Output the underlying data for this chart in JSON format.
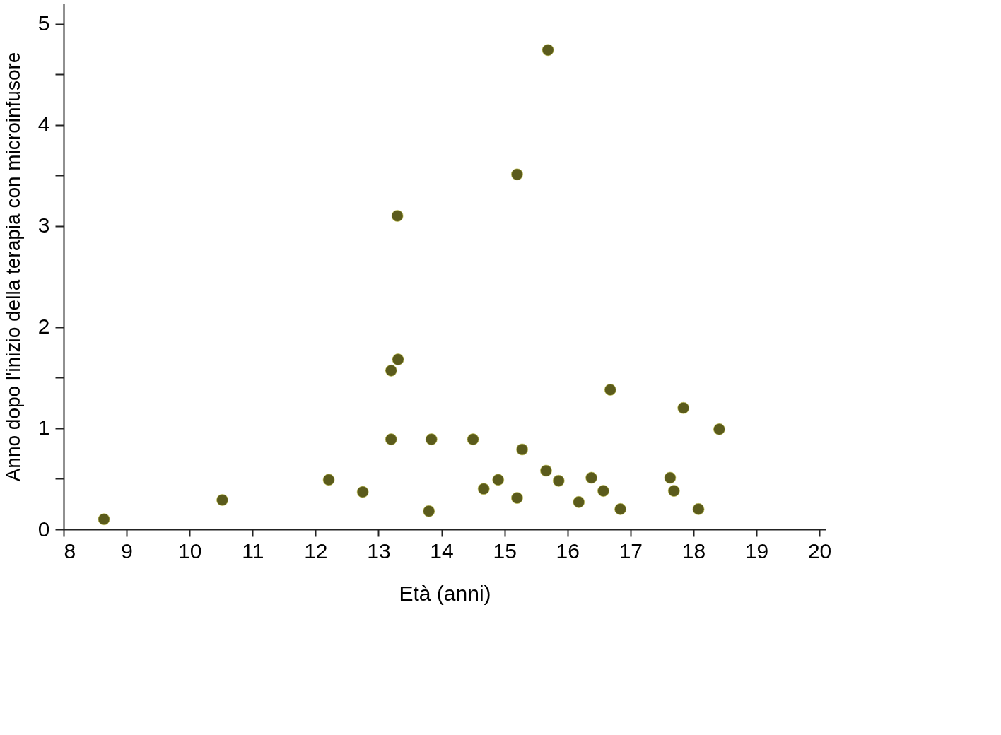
{
  "chart_data": {
    "type": "scatter",
    "xlabel": "Età (anni)",
    "ylabel": "Anno dopo l'inizio della terapia con microinfusore",
    "xlim": [
      8,
      20.1
    ],
    "xticks": [
      8,
      9,
      10,
      11,
      12,
      13,
      14,
      15,
      16,
      17,
      18,
      19,
      20
    ],
    "ylim": [
      0,
      5.2
    ],
    "yticks": [
      0,
      {
        "value": 0.5,
        "label": null
      },
      1,
      {
        "value": 1.5,
        "label": null
      },
      2,
      3,
      {
        "value": 3.5,
        "label": null
      },
      4,
      {
        "value": 4.5,
        "label": null
      },
      5
    ],
    "grid": false,
    "marker": "circle",
    "series": [
      {
        "color": "#5b5b1c",
        "x": [
          8.64,
          10.52,
          12.21,
          12.75,
          13.2,
          13.31,
          13.3,
          13.2,
          13.84,
          13.8,
          14.5,
          14.67,
          14.9,
          15.2,
          15.28,
          15.2,
          15.69,
          15.66,
          15.86,
          16.18,
          16.38,
          16.57,
          16.68,
          16.84,
          17.63,
          17.69,
          17.84,
          18.08,
          18.41
        ],
        "values": [
          0.1,
          0.29,
          0.49,
          0.37,
          1.57,
          1.68,
          3.1,
          0.89,
          0.89,
          0.18,
          0.89,
          0.4,
          0.49,
          3.51,
          0.79,
          0.31,
          4.74,
          0.58,
          0.48,
          0.27,
          0.51,
          0.38,
          1.38,
          0.2,
          0.51,
          0.38,
          1.2,
          0.2,
          0.99
        ]
      }
    ]
  }
}
